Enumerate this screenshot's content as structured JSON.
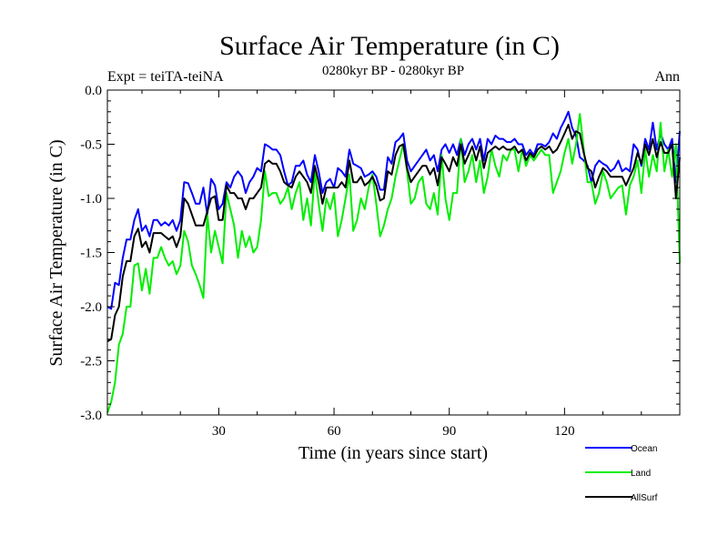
{
  "chart_data": {
    "type": "line",
    "title": "Surface Air Temperature (in C)",
    "subtitle": "0280kyr BP - 0280kyr BP",
    "expt_label": "Expt = teiTA-teiNA",
    "period_label": "Ann",
    "xlabel": "Time (in years since start)",
    "ylabel": "Surface Air Temperature (in C)",
    "xlim": [
      1,
      150
    ],
    "ylim": [
      -3.0,
      0.0
    ],
    "x_ticks": [
      30,
      60,
      90,
      120
    ],
    "x_tick_labels": [
      "30",
      "60",
      "90",
      "120"
    ],
    "y_ticks": [
      -3.0,
      -2.5,
      -2.0,
      -1.5,
      -1.0,
      -0.5,
      0.0
    ],
    "y_tick_labels": [
      "-3.0",
      "-2.5",
      "-2.0",
      "-1.5",
      "-1.0",
      "-0.5",
      "0.0"
    ],
    "legend_position": "bottom-right",
    "series": [
      {
        "name": "Ocean",
        "color": "#0000ff",
        "x": [
          1,
          2,
          3,
          4,
          5,
          6,
          7,
          8,
          9,
          10,
          11,
          12,
          13,
          14,
          15,
          16,
          17,
          18,
          19,
          20,
          21,
          22,
          23,
          24,
          25,
          26,
          27,
          28,
          29,
          30,
          31,
          32,
          33,
          34,
          35,
          36,
          37,
          38,
          39,
          40,
          41,
          42,
          43,
          44,
          45,
          46,
          47,
          48,
          49,
          50,
          51,
          52,
          53,
          54,
          55,
          56,
          57,
          58,
          59,
          60,
          61,
          62,
          63,
          64,
          65,
          66,
          67,
          68,
          69,
          70,
          71,
          72,
          73,
          74,
          75,
          76,
          77,
          78,
          79,
          80,
          81,
          82,
          83,
          84,
          85,
          86,
          87,
          88,
          89,
          90,
          91,
          92,
          93,
          94,
          95,
          96,
          97,
          98,
          99,
          100,
          101,
          102,
          103,
          104,
          105,
          106,
          107,
          108,
          109,
          110,
          111,
          112,
          113,
          114,
          115,
          116,
          117,
          118,
          119,
          120,
          121,
          122,
          123,
          124,
          125,
          126,
          127,
          128,
          129,
          130,
          131,
          132,
          133,
          134,
          135,
          136,
          137,
          138,
          139,
          140,
          141,
          142,
          143,
          144,
          145,
          146,
          147,
          148,
          149,
          150
        ],
        "values": [
          -2.0,
          -2.02,
          -1.78,
          -1.8,
          -1.55,
          -1.38,
          -1.38,
          -1.2,
          -1.1,
          -1.3,
          -1.25,
          -1.35,
          -1.2,
          -1.2,
          -1.25,
          -1.22,
          -1.25,
          -1.2,
          -1.3,
          -1.2,
          -0.85,
          -0.86,
          -0.95,
          -1.05,
          -1.05,
          -0.9,
          -1.15,
          -0.82,
          -0.88,
          -1.1,
          -1.05,
          -0.85,
          -0.9,
          -0.8,
          -0.75,
          -0.8,
          -0.95,
          -0.85,
          -0.8,
          -0.72,
          -0.75,
          -0.5,
          -0.52,
          -0.55,
          -0.55,
          -0.6,
          -0.75,
          -0.88,
          -0.85,
          -0.7,
          -0.7,
          -0.65,
          -0.78,
          -0.85,
          -0.6,
          -0.75,
          -0.95,
          -0.85,
          -0.82,
          -0.9,
          -0.72,
          -0.75,
          -0.8,
          -0.55,
          -0.68,
          -0.7,
          -0.72,
          -0.8,
          -0.78,
          -0.75,
          -0.8,
          -0.92,
          -0.92,
          -0.62,
          -0.68,
          -0.48,
          -0.45,
          -0.4,
          -0.65,
          -0.75,
          -0.7,
          -0.65,
          -0.6,
          -0.55,
          -0.65,
          -0.6,
          -0.75,
          -0.55,
          -0.5,
          -0.58,
          -0.5,
          -0.6,
          -0.45,
          -0.6,
          -0.5,
          -0.45,
          -0.55,
          -0.45,
          -0.65,
          -0.45,
          -0.5,
          -0.42,
          -0.45,
          -0.45,
          -0.48,
          -0.48,
          -0.45,
          -0.5,
          -0.5,
          -0.6,
          -0.55,
          -0.6,
          -0.5,
          -0.5,
          -0.52,
          -0.48,
          -0.4,
          -0.45,
          -0.35,
          -0.28,
          -0.2,
          -0.35,
          -0.42,
          -0.62,
          -0.65,
          -0.7,
          -0.85,
          -0.7,
          -0.65,
          -0.68,
          -0.7,
          -0.75,
          -0.72,
          -0.65,
          -0.75,
          -0.72,
          -0.75,
          -0.5,
          -0.55,
          -0.7,
          -0.45,
          -0.55,
          -0.3,
          -0.55,
          -0.4,
          -0.5,
          -0.55,
          -0.45,
          -0.85,
          -0.38
        ]
      },
      {
        "name": "Land",
        "color": "#00ee00",
        "x": [
          1,
          2,
          3,
          4,
          5,
          6,
          7,
          8,
          9,
          10,
          11,
          12,
          13,
          14,
          15,
          16,
          17,
          18,
          19,
          20,
          21,
          22,
          23,
          24,
          25,
          26,
          27,
          28,
          29,
          30,
          31,
          32,
          33,
          34,
          35,
          36,
          37,
          38,
          39,
          40,
          41,
          42,
          43,
          44,
          45,
          46,
          47,
          48,
          49,
          50,
          51,
          52,
          53,
          54,
          55,
          56,
          57,
          58,
          59,
          60,
          61,
          62,
          63,
          64,
          65,
          66,
          67,
          68,
          69,
          70,
          71,
          72,
          73,
          74,
          75,
          76,
          77,
          78,
          79,
          80,
          81,
          82,
          83,
          84,
          85,
          86,
          87,
          88,
          89,
          90,
          91,
          92,
          93,
          94,
          95,
          96,
          97,
          98,
          99,
          100,
          101,
          102,
          103,
          104,
          105,
          106,
          107,
          108,
          109,
          110,
          111,
          112,
          113,
          114,
          115,
          116,
          117,
          118,
          119,
          120,
          121,
          122,
          123,
          124,
          125,
          126,
          127,
          128,
          129,
          130,
          131,
          132,
          133,
          134,
          135,
          136,
          137,
          138,
          139,
          140,
          141,
          142,
          143,
          144,
          145,
          146,
          147,
          148,
          149,
          150
        ],
        "values": [
          -2.98,
          -2.88,
          -2.7,
          -2.35,
          -2.25,
          -2.0,
          -2.0,
          -1.62,
          -1.6,
          -1.85,
          -1.65,
          -1.88,
          -1.55,
          -1.55,
          -1.45,
          -1.55,
          -1.62,
          -1.58,
          -1.7,
          -1.62,
          -1.3,
          -1.4,
          -1.62,
          -1.7,
          -1.8,
          -1.92,
          -1.15,
          -1.5,
          -1.3,
          -1.45,
          -1.6,
          -0.95,
          -1.1,
          -1.25,
          -1.55,
          -1.3,
          -1.45,
          -1.35,
          -1.5,
          -1.45,
          -1.2,
          -0.75,
          -0.98,
          -0.95,
          -0.95,
          -1.05,
          -1.0,
          -0.9,
          -1.1,
          -0.95,
          -0.85,
          -1.2,
          -1.0,
          -1.25,
          -0.75,
          -1.05,
          -1.3,
          -1.0,
          -1.1,
          -0.95,
          -1.35,
          -1.2,
          -1.0,
          -0.78,
          -1.3,
          -1.2,
          -1.0,
          -1.1,
          -0.9,
          -0.78,
          -1.05,
          -1.35,
          -1.25,
          -1.1,
          -1.0,
          -0.8,
          -0.65,
          -0.5,
          -0.75,
          -1.05,
          -1.0,
          -0.85,
          -0.8,
          -1.05,
          -1.1,
          -0.95,
          -1.15,
          -0.6,
          -1.0,
          -1.2,
          -0.95,
          -0.95,
          -0.45,
          -0.85,
          -0.75,
          -0.6,
          -0.85,
          -0.65,
          -0.95,
          -0.8,
          -0.55,
          -0.7,
          -0.8,
          -0.6,
          -0.65,
          -0.55,
          -0.55,
          -0.75,
          -0.55,
          -0.7,
          -0.6,
          -0.65,
          -0.6,
          -0.55,
          -0.6,
          -0.6,
          -0.95,
          -0.85,
          -0.75,
          -0.58,
          -0.45,
          -0.68,
          -0.5,
          -0.22,
          -0.55,
          -0.85,
          -0.85,
          -1.05,
          -0.95,
          -0.75,
          -0.85,
          -1.0,
          -0.95,
          -0.9,
          -0.88,
          -1.15,
          -0.88,
          -0.8,
          -0.65,
          -0.95,
          -0.55,
          -0.8,
          -0.6,
          -0.75,
          -0.3,
          -0.75,
          -0.55,
          -0.8,
          -0.5,
          -1.6
        ]
      },
      {
        "name": "AllSurf",
        "color": "#000000",
        "x": [
          1,
          2,
          3,
          4,
          5,
          6,
          7,
          8,
          9,
          10,
          11,
          12,
          13,
          14,
          15,
          16,
          17,
          18,
          19,
          20,
          21,
          22,
          23,
          24,
          25,
          26,
          27,
          28,
          29,
          30,
          31,
          32,
          33,
          34,
          35,
          36,
          37,
          38,
          39,
          40,
          41,
          42,
          43,
          44,
          45,
          46,
          47,
          48,
          49,
          50,
          51,
          52,
          53,
          54,
          55,
          56,
          57,
          58,
          59,
          60,
          61,
          62,
          63,
          64,
          65,
          66,
          67,
          68,
          69,
          70,
          71,
          72,
          73,
          74,
          75,
          76,
          77,
          78,
          79,
          80,
          81,
          82,
          83,
          84,
          85,
          86,
          87,
          88,
          89,
          90,
          91,
          92,
          93,
          94,
          95,
          96,
          97,
          98,
          99,
          100,
          101,
          102,
          103,
          104,
          105,
          106,
          107,
          108,
          109,
          110,
          111,
          112,
          113,
          114,
          115,
          116,
          117,
          118,
          119,
          120,
          121,
          122,
          123,
          124,
          125,
          126,
          127,
          128,
          129,
          130,
          131,
          132,
          133,
          134,
          135,
          136,
          137,
          138,
          139,
          140,
          141,
          142,
          143,
          144,
          145,
          146,
          147,
          148,
          149,
          150
        ],
        "values": [
          -2.32,
          -2.3,
          -2.08,
          -2.0,
          -1.72,
          -1.58,
          -1.58,
          -1.35,
          -1.28,
          -1.45,
          -1.4,
          -1.5,
          -1.32,
          -1.32,
          -1.32,
          -1.35,
          -1.38,
          -1.35,
          -1.45,
          -1.35,
          -1.0,
          -1.05,
          -1.15,
          -1.25,
          -1.25,
          -1.25,
          -1.12,
          -1.0,
          -0.98,
          -1.2,
          -1.2,
          -0.88,
          -0.95,
          -0.95,
          -1.0,
          -1.0,
          -1.1,
          -1.0,
          -1.0,
          -0.95,
          -0.9,
          -0.68,
          -0.65,
          -0.68,
          -0.68,
          -0.75,
          -0.85,
          -0.88,
          -0.9,
          -0.8,
          -0.75,
          -0.8,
          -0.85,
          -0.95,
          -0.7,
          -0.85,
          -1.05,
          -0.9,
          -0.9,
          -0.9,
          -0.9,
          -0.85,
          -0.9,
          -0.65,
          -0.85,
          -0.85,
          -0.8,
          -0.88,
          -0.85,
          -0.8,
          -0.88,
          -1.02,
          -1.0,
          -0.75,
          -0.78,
          -0.6,
          -0.52,
          -0.5,
          -0.72,
          -0.85,
          -0.8,
          -0.75,
          -0.7,
          -0.7,
          -0.78,
          -0.72,
          -0.88,
          -0.62,
          -0.68,
          -0.75,
          -0.62,
          -0.7,
          -0.5,
          -0.68,
          -0.6,
          -0.52,
          -0.65,
          -0.52,
          -0.72,
          -0.58,
          -0.55,
          -0.52,
          -0.55,
          -0.52,
          -0.55,
          -0.55,
          -0.52,
          -0.58,
          -0.55,
          -0.65,
          -0.58,
          -0.62,
          -0.55,
          -0.52,
          -0.55,
          -0.52,
          -0.58,
          -0.55,
          -0.48,
          -0.4,
          -0.32,
          -0.45,
          -0.38,
          -0.4,
          -0.58,
          -0.72,
          -0.75,
          -0.9,
          -0.8,
          -0.72,
          -0.75,
          -0.8,
          -0.8,
          -0.8,
          -0.8,
          -0.88,
          -0.8,
          -0.72,
          -0.58,
          -0.68,
          -0.5,
          -0.6,
          -0.45,
          -0.62,
          -0.48,
          -0.58,
          -0.58,
          -0.5,
          -1.0,
          -0.62
        ]
      }
    ]
  }
}
